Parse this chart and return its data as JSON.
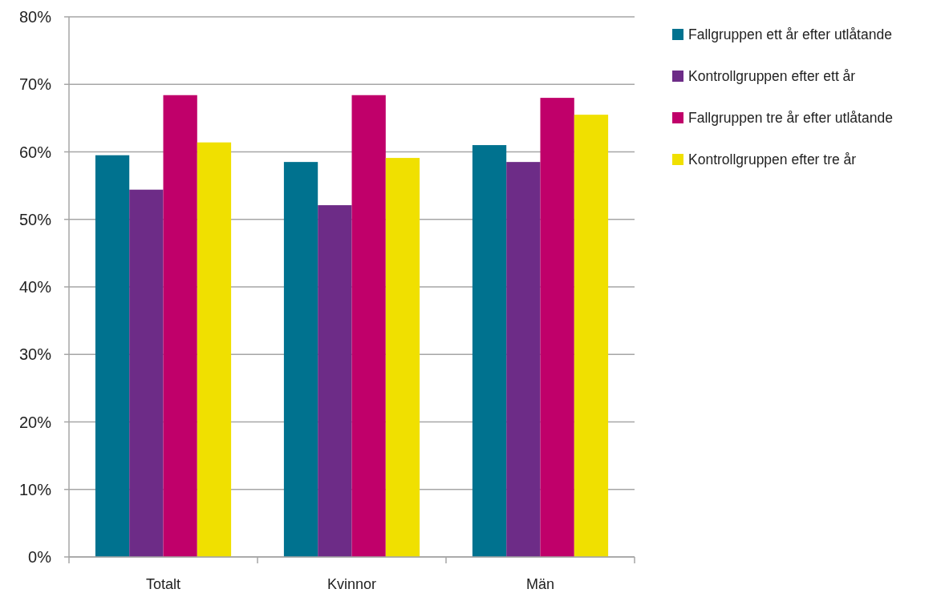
{
  "chart_data": {
    "type": "bar",
    "categories": [
      "Totalt",
      "Kvinnor",
      "Män"
    ],
    "series": [
      {
        "name": "Fallgruppen ett år efter utlåtande",
        "color": "#00728f",
        "values": [
          59.5,
          58.5,
          61.0
        ]
      },
      {
        "name": "Kontrollgruppen efter ett år",
        "color": "#6d2c87",
        "values": [
          54.4,
          52.1,
          58.5
        ]
      },
      {
        "name": "Fallgruppen tre år efter utlåtande",
        "color": "#c0006a",
        "values": [
          68.4,
          68.4,
          68.0
        ]
      },
      {
        "name": "Kontrollgruppen efter tre år",
        "color": "#f0e000",
        "values": [
          61.4,
          59.1,
          65.5
        ]
      }
    ],
    "ylim": [
      0,
      80
    ],
    "yticks": [
      {
        "value": 0,
        "label": "0%"
      },
      {
        "value": 10,
        "label": "10%"
      },
      {
        "value": 20,
        "label": "20%"
      },
      {
        "value": 30,
        "label": "30%"
      },
      {
        "value": 40,
        "label": "40%"
      },
      {
        "value": 50,
        "label": "50%"
      },
      {
        "value": 60,
        "label": "60%"
      },
      {
        "value": 70,
        "label": "70%"
      },
      {
        "value": 80,
        "label": "80%"
      }
    ],
    "grid": "y",
    "legend": "top right"
  }
}
